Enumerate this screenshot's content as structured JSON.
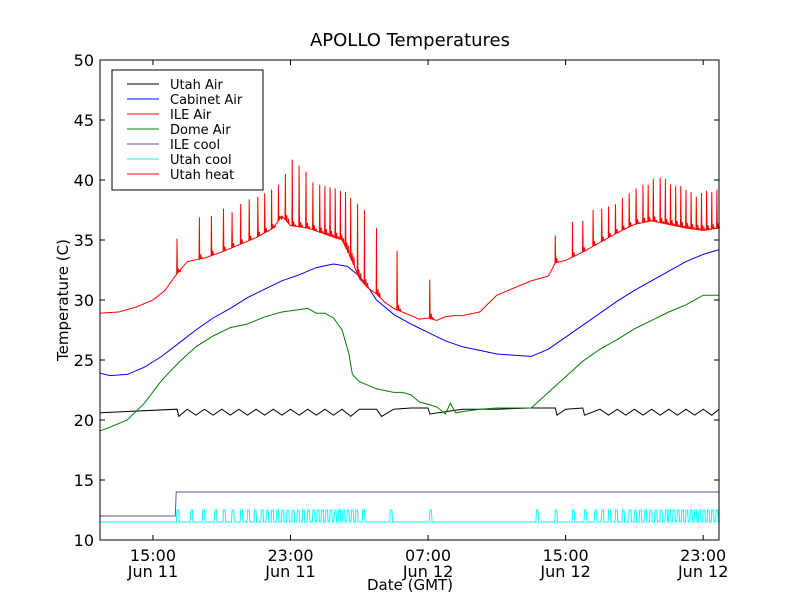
{
  "chart_data": {
    "type": "line",
    "title": "APOLLO Temperatures",
    "xlabel": "Date (GMT)",
    "ylabel": "Temperature (C)",
    "x_units": "hours since 00:00 Jun 11 (GMT)",
    "xlim": [
      11.92,
      47.92
    ],
    "ylim": [
      10,
      50
    ],
    "grid": false,
    "legend_position": "top-left",
    "x_ticks": [
      {
        "value": 15,
        "label_time": "15:00",
        "label_date": "Jun 11"
      },
      {
        "value": 23,
        "label_time": "23:00",
        "label_date": "Jun 11"
      },
      {
        "value": 31,
        "label_time": "07:00",
        "label_date": "Jun 12"
      },
      {
        "value": 39,
        "label_time": "15:00",
        "label_date": "Jun 12"
      },
      {
        "value": 47,
        "label_time": "23:00",
        "label_date": "Jun 12"
      }
    ],
    "y_ticks": [
      {
        "value": 10,
        "label": "10"
      },
      {
        "value": 15,
        "label": "15"
      },
      {
        "value": 20,
        "label": "20"
      },
      {
        "value": 25,
        "label": "25"
      },
      {
        "value": 30,
        "label": "30"
      },
      {
        "value": 35,
        "label": "35"
      },
      {
        "value": 40,
        "label": "40"
      },
      {
        "value": 45,
        "label": "45"
      },
      {
        "value": 50,
        "label": "50"
      }
    ],
    "series": [
      {
        "name": "Utah Air",
        "color": "#000000",
        "x": [
          11.92,
          16.4,
          16.5,
          17.0,
          17.5,
          18.0,
          18.5,
          19.0,
          19.5,
          20.0,
          20.5,
          21.0,
          21.5,
          22.0,
          22.5,
          23.0,
          23.5,
          24.0,
          24.5,
          25.0,
          25.5,
          26.0,
          26.5,
          27.0,
          28.0,
          28.3,
          29.0,
          30.0,
          31.0,
          31.1,
          33.0,
          35.0,
          37.0,
          38.4,
          38.5,
          39.0,
          40.0,
          40.1,
          41.0,
          41.5,
          42.0,
          42.5,
          43.0,
          43.5,
          44.0,
          44.5,
          45.0,
          45.5,
          46.0,
          46.5,
          47.0,
          47.5,
          47.92
        ],
        "y": [
          20.6,
          20.9,
          20.3,
          20.9,
          20.4,
          20.9,
          20.4,
          20.9,
          20.4,
          20.9,
          20.4,
          20.9,
          20.4,
          20.9,
          20.4,
          20.9,
          20.4,
          20.9,
          20.4,
          20.9,
          20.4,
          20.9,
          20.3,
          20.9,
          20.9,
          20.3,
          20.9,
          21.0,
          21.0,
          20.5,
          20.9,
          20.9,
          21.0,
          21.0,
          20.4,
          20.9,
          21.0,
          20.4,
          20.9,
          20.4,
          20.9,
          20.4,
          20.9,
          20.4,
          20.9,
          20.4,
          20.9,
          20.4,
          20.9,
          20.4,
          20.9,
          20.4,
          20.9
        ]
      },
      {
        "name": "Cabinet Air",
        "color": "#0000ff",
        "x": [
          11.92,
          12.5,
          13.5,
          14.5,
          15.5,
          16.5,
          17.5,
          18.5,
          19.5,
          20.5,
          21.5,
          22.5,
          23.5,
          24.5,
          25.5,
          26.3,
          27.0,
          27.5,
          28.0,
          29.0,
          30.0,
          31.0,
          32.0,
          33.0,
          34.0,
          35.0,
          36.0,
          37.0,
          38.0,
          39.0,
          40.0,
          41.0,
          42.0,
          43.0,
          44.0,
          45.0,
          46.0,
          47.0,
          47.92
        ],
        "y": [
          23.9,
          23.7,
          23.8,
          24.4,
          25.3,
          26.4,
          27.5,
          28.5,
          29.3,
          30.2,
          30.9,
          31.6,
          32.1,
          32.7,
          33.0,
          32.8,
          32.0,
          31.1,
          30.0,
          28.8,
          28.0,
          27.3,
          26.6,
          26.1,
          25.8,
          25.5,
          25.4,
          25.3,
          25.9,
          26.9,
          27.9,
          28.9,
          29.9,
          30.8,
          31.6,
          32.4,
          33.2,
          33.8,
          34.2
        ]
      },
      {
        "name": "ILE Air",
        "color": "#ff0000",
        "x": [],
        "y": []
      },
      {
        "name": "Dome Air",
        "color": "#008000",
        "x": [
          11.92,
          12.5,
          13.5,
          14.5,
          15.5,
          16.5,
          17.5,
          18.5,
          19.5,
          20.5,
          21.5,
          22.5,
          23.5,
          24.0,
          24.5,
          25.0,
          25.5,
          26.0,
          26.4,
          26.6,
          27.0,
          28.0,
          29.0,
          29.5,
          30.0,
          30.5,
          31.0,
          31.5,
          32.0,
          32.3,
          32.6,
          33.0,
          34.0,
          35.0,
          36.0,
          37.0,
          38.0,
          39.0,
          40.0,
          41.0,
          42.0,
          43.0,
          44.0,
          45.0,
          46.0,
          47.0,
          47.92
        ],
        "y": [
          19.1,
          19.4,
          20.0,
          21.4,
          23.3,
          24.8,
          26.1,
          27.0,
          27.7,
          28.0,
          28.6,
          29.0,
          29.2,
          29.3,
          28.9,
          28.9,
          28.5,
          27.5,
          25.5,
          23.8,
          23.2,
          22.6,
          22.3,
          22.3,
          22.1,
          21.5,
          21.3,
          21.1,
          20.5,
          21.4,
          20.6,
          20.7,
          20.9,
          21.0,
          21.0,
          21.0,
          22.3,
          23.6,
          24.9,
          25.9,
          26.7,
          27.6,
          28.3,
          29.0,
          29.6,
          30.4,
          30.4
        ]
      },
      {
        "name": "ILE cool",
        "color": "#555599",
        "x": [
          11.92,
          16.3,
          16.35,
          47.92
        ],
        "y": [
          12.0,
          12.0,
          14.0,
          14.0
        ]
      },
      {
        "name": "Utah cool",
        "color": "#00ffff",
        "baseline": 11.5,
        "pulse_level": 12.5,
        "pulse_times": [
          16.4,
          17.2,
          17.9,
          18.6,
          19.1,
          19.6,
          20.1,
          20.5,
          20.9,
          21.3,
          21.6,
          21.9,
          22.2,
          22.5,
          22.8,
          23.1,
          23.4,
          23.7,
          24.0,
          24.3,
          24.55,
          24.8,
          25.05,
          25.3,
          25.55,
          25.8,
          26.05,
          26.3,
          26.55,
          26.8,
          27.2,
          28.8,
          31.1,
          37.3,
          38.4,
          39.4,
          40.1,
          40.7,
          41.1,
          41.5,
          41.9,
          42.3,
          42.7,
          43.0,
          43.3,
          43.6,
          43.9,
          44.2,
          44.5,
          44.8,
          45.0,
          45.25,
          45.5,
          45.75,
          46.0,
          46.25,
          46.5,
          46.75,
          47.0,
          47.25,
          47.5,
          47.75
        ]
      },
      {
        "name": "Utah heat",
        "color": "#ff0000",
        "baseline_x": [
          11.92,
          13.0,
          14.0,
          15.0,
          15.7,
          16.2,
          16.4,
          17.0,
          18.0,
          19.0,
          20.0,
          21.0,
          22.0,
          22.5,
          23.0,
          24.0,
          25.0,
          26.0,
          26.5,
          27.0,
          27.5,
          28.0,
          28.5,
          29.0,
          29.5,
          30.0,
          30.5,
          31.0,
          31.5,
          32.0,
          32.5,
          33.0,
          34.0,
          35.0,
          36.0,
          37.0,
          38.0,
          38.4,
          39.0,
          40.0,
          41.0,
          42.0,
          43.0,
          44.0,
          45.0,
          46.0,
          47.0,
          47.92
        ],
        "baseline_y": [
          28.9,
          29.0,
          29.4,
          30.0,
          30.8,
          31.8,
          32.2,
          33.2,
          33.5,
          34.0,
          34.6,
          35.2,
          36.0,
          37.0,
          36.2,
          36.0,
          35.5,
          35.0,
          33.5,
          31.8,
          31.0,
          30.5,
          29.8,
          29.3,
          29.0,
          28.7,
          28.4,
          28.5,
          28.3,
          28.6,
          28.7,
          28.7,
          29.0,
          30.4,
          31.0,
          31.6,
          32.0,
          33.1,
          33.3,
          34.0,
          34.8,
          35.6,
          36.3,
          36.6,
          36.3,
          36.0,
          35.8,
          36.0
        ],
        "spikes": [
          {
            "x": 16.4,
            "y": 35.1
          },
          {
            "x": 17.7,
            "y": 36.9
          },
          {
            "x": 18.4,
            "y": 37.0
          },
          {
            "x": 19.1,
            "y": 37.6
          },
          {
            "x": 19.6,
            "y": 37.3
          },
          {
            "x": 20.1,
            "y": 38.0
          },
          {
            "x": 20.6,
            "y": 38.4
          },
          {
            "x": 21.1,
            "y": 38.6
          },
          {
            "x": 21.5,
            "y": 38.9
          },
          {
            "x": 21.9,
            "y": 39.2
          },
          {
            "x": 22.3,
            "y": 39.6
          },
          {
            "x": 22.7,
            "y": 40.5
          },
          {
            "x": 23.1,
            "y": 41.7
          },
          {
            "x": 23.5,
            "y": 41.2
          },
          {
            "x": 23.9,
            "y": 40.7
          },
          {
            "x": 24.3,
            "y": 39.8
          },
          {
            "x": 24.7,
            "y": 39.6
          },
          {
            "x": 25.0,
            "y": 39.5
          },
          {
            "x": 25.3,
            "y": 39.4
          },
          {
            "x": 25.6,
            "y": 39.3
          },
          {
            "x": 25.9,
            "y": 39.1
          },
          {
            "x": 26.2,
            "y": 39.0
          },
          {
            "x": 26.5,
            "y": 38.5
          },
          {
            "x": 26.9,
            "y": 38.0
          },
          {
            "x": 27.3,
            "y": 37.5
          },
          {
            "x": 28.0,
            "y": 36.0
          },
          {
            "x": 29.2,
            "y": 34.1
          },
          {
            "x": 31.1,
            "y": 31.7
          },
          {
            "x": 38.4,
            "y": 35.4
          },
          {
            "x": 39.4,
            "y": 36.5
          },
          {
            "x": 40.0,
            "y": 36.6
          },
          {
            "x": 40.6,
            "y": 37.5
          },
          {
            "x": 41.1,
            "y": 37.6
          },
          {
            "x": 41.5,
            "y": 37.8
          },
          {
            "x": 41.9,
            "y": 38.0
          },
          {
            "x": 42.3,
            "y": 38.5
          },
          {
            "x": 42.7,
            "y": 38.9
          },
          {
            "x": 43.1,
            "y": 39.3
          },
          {
            "x": 43.5,
            "y": 39.6
          },
          {
            "x": 43.8,
            "y": 39.6
          },
          {
            "x": 44.1,
            "y": 40.1
          },
          {
            "x": 44.5,
            "y": 40.2
          },
          {
            "x": 44.8,
            "y": 40.1
          },
          {
            "x": 45.1,
            "y": 39.6
          },
          {
            "x": 45.4,
            "y": 39.5
          },
          {
            "x": 45.7,
            "y": 39.5
          },
          {
            "x": 46.0,
            "y": 39.2
          },
          {
            "x": 46.3,
            "y": 39.0
          },
          {
            "x": 46.6,
            "y": 38.6
          },
          {
            "x": 46.9,
            "y": 38.9
          },
          {
            "x": 47.2,
            "y": 39.1
          },
          {
            "x": 47.5,
            "y": 39.0
          },
          {
            "x": 47.8,
            "y": 39.2
          }
        ]
      }
    ]
  }
}
